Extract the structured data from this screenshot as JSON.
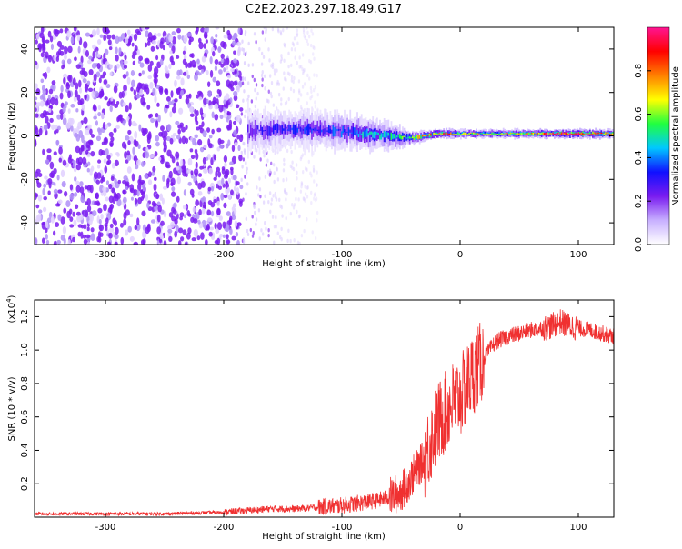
{
  "figure": {
    "title": "C2E2.2023.297.18.49.G17",
    "colors": {
      "low_snr_scatter": "#7a1cf0",
      "snr_line": "#f03030",
      "axis": "#000000"
    }
  },
  "chart_data": [
    {
      "type": "heatmap",
      "title": "C2E2.2023.297.18.49.G17",
      "xlabel": "Height of straight line (km)",
      "ylabel": "Frequency (Hz)",
      "xlim": [
        -360,
        130
      ],
      "ylim": [
        -50,
        50
      ],
      "x_ticks": [
        -300,
        -200,
        -100,
        0,
        100
      ],
      "y_ticks": [
        -40,
        -20,
        0,
        20,
        40
      ],
      "colorbar": {
        "label": "Normalized spectral amplitude",
        "range": [
          0.0,
          1.0
        ],
        "ticks": [
          0.0,
          0.2,
          0.4,
          0.6,
          0.8
        ],
        "tick_labels": [
          "0.0",
          "0.2",
          "0.4",
          "0.6",
          "0.8"
        ],
        "colormap": [
          "#ffffff",
          "#c8b0ff",
          "#7a1cf0",
          "#1010ff",
          "#00c8ff",
          "#20ff40",
          "#ffff00",
          "#ff8000",
          "#ff0000",
          "#ff1493"
        ]
      },
      "description_points": {
        "noise_region_x": [
          -360,
          -185
        ],
        "noise_fade_x": [
          -185,
          -120
        ],
        "signal_center_hz": [
          [
            -180,
            2
          ],
          [
            -150,
            3
          ],
          [
            -120,
            3
          ],
          [
            -100,
            2
          ],
          [
            -80,
            1
          ],
          [
            -60,
            0
          ],
          [
            -40,
            -1
          ],
          [
            -20,
            1
          ],
          [
            0,
            1
          ],
          [
            30,
            1
          ],
          [
            60,
            1
          ],
          [
            90,
            1
          ],
          [
            130,
            1
          ]
        ],
        "signal_halfwidth_hz": [
          [
            -180,
            10
          ],
          [
            -150,
            8
          ],
          [
            -120,
            8
          ],
          [
            -100,
            8
          ],
          [
            -80,
            7
          ],
          [
            -60,
            6
          ],
          [
            -40,
            3
          ],
          [
            -20,
            2
          ],
          [
            0,
            2
          ],
          [
            30,
            2
          ],
          [
            60,
            2
          ],
          [
            90,
            2
          ],
          [
            130,
            2
          ]
        ],
        "signal_peak_amplitude": [
          [
            -180,
            0.25
          ],
          [
            -150,
            0.3
          ],
          [
            -120,
            0.32
          ],
          [
            -100,
            0.35
          ],
          [
            -80,
            0.45
          ],
          [
            -60,
            0.45
          ],
          [
            -40,
            0.6
          ],
          [
            -20,
            0.85
          ],
          [
            0,
            0.65
          ],
          [
            30,
            0.62
          ],
          [
            60,
            0.7
          ],
          [
            80,
            0.9
          ],
          [
            100,
            0.92
          ],
          [
            130,
            0.75
          ]
        ]
      }
    },
    {
      "type": "line",
      "xlabel": "Height of straight line (km)",
      "ylabel": "SNR (10 * v/v)",
      "y_multiplier_label": "(x10",
      "y_multiplier_exp": "4",
      "xlim": [
        -360,
        130
      ],
      "ylim": [
        0,
        1.3
      ],
      "x_ticks": [
        -300,
        -200,
        -100,
        0,
        100
      ],
      "y_ticks": [
        0.2,
        0.4,
        0.6,
        0.8,
        1.0,
        1.2
      ],
      "y_tick_labels": [
        "0.2",
        "0.4",
        "0.6",
        "0.8",
        "1.0",
        "1.2"
      ],
      "series": [
        {
          "color": "#f03030",
          "x": [
            -360,
            -300,
            -250,
            -200,
            -180,
            -160,
            -140,
            -120,
            -100,
            -90,
            -80,
            -70,
            -60,
            -50,
            -40,
            -30,
            -25,
            -20,
            -15,
            -10,
            -5,
            0,
            5,
            10,
            15,
            20,
            25,
            30,
            40,
            50,
            60,
            70,
            80,
            85,
            90,
            95,
            100,
            110,
            120,
            130
          ],
          "y": [
            0.02,
            0.02,
            0.02,
            0.03,
            0.04,
            0.05,
            0.05,
            0.06,
            0.07,
            0.08,
            0.09,
            0.1,
            0.12,
            0.15,
            0.25,
            0.35,
            0.45,
            0.55,
            0.6,
            0.65,
            0.7,
            0.72,
            0.78,
            0.85,
            0.9,
            0.95,
            1.0,
            1.05,
            1.08,
            1.1,
            1.12,
            1.13,
            1.15,
            1.17,
            1.15,
            1.14,
            1.13,
            1.12,
            1.1,
            1.08
          ]
        }
      ]
    }
  ]
}
